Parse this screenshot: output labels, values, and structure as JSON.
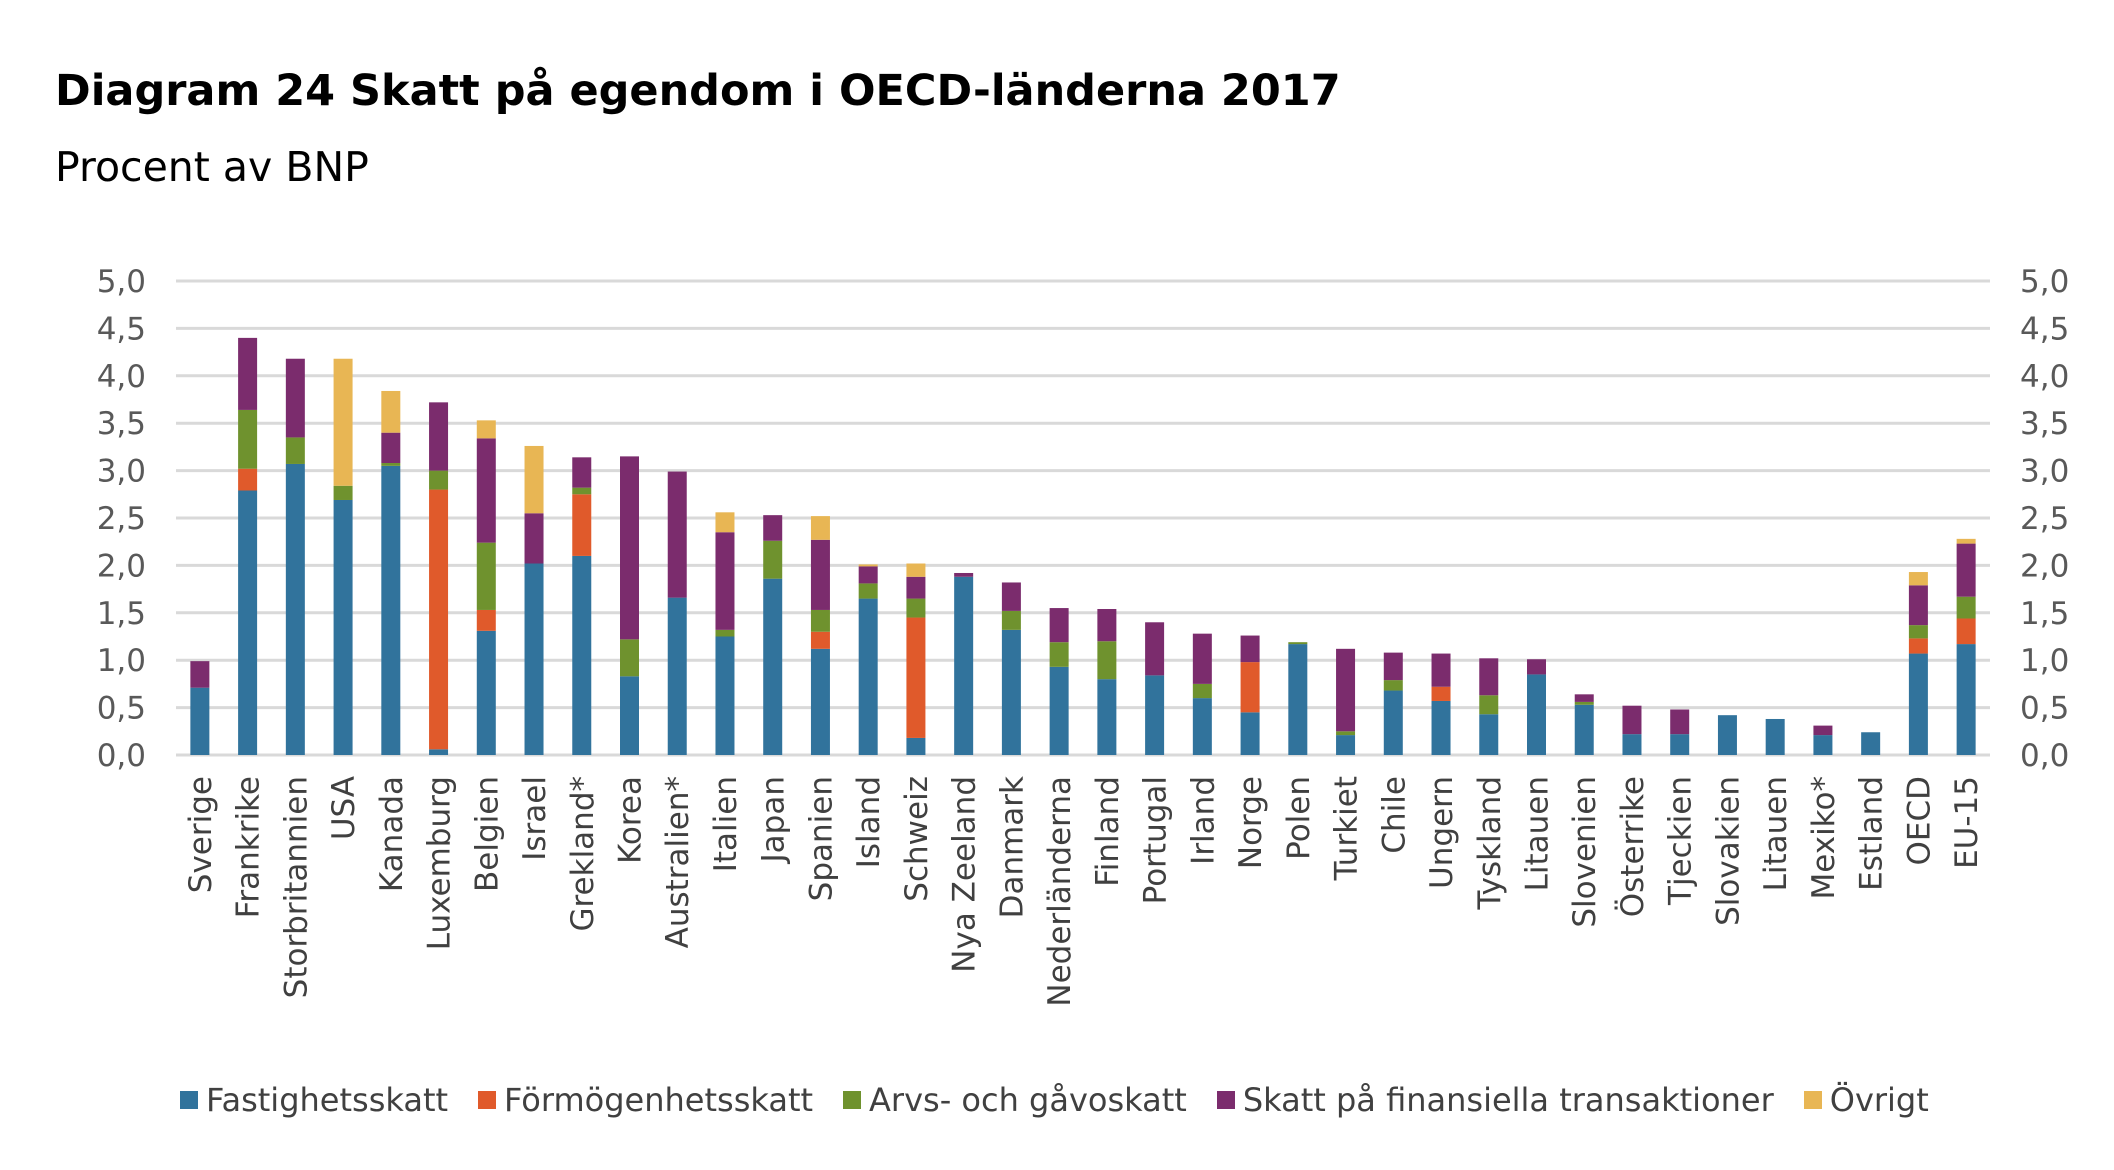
{
  "title": "Diagram 24 Skatt på egendom i OECD-länderna 2017",
  "subtitle": "Procent av BNP",
  "chart_data": {
    "type": "bar",
    "stacked": true,
    "ylim": [
      0,
      5
    ],
    "yticks": [
      "0,0",
      "0,5",
      "1,0",
      "1,5",
      "2,0",
      "2,5",
      "3,0",
      "3,5",
      "4,0",
      "4,5",
      "5,0"
    ],
    "ytick_values": [
      0,
      0.5,
      1,
      1.5,
      2,
      2.5,
      3,
      3.5,
      4,
      4.5,
      5
    ],
    "categories": [
      "Sverige",
      "Frankrike",
      "Storbritannien",
      "USA",
      "Kanada",
      "Luxemburg",
      "Belgien",
      "Israel",
      "Grekland*",
      "Korea",
      "Australien*",
      "Italien",
      "Japan",
      "Spanien",
      "Island",
      "Schweiz",
      "Nya Zeeland",
      "Danmark",
      "Nederländerna",
      "Finland",
      "Portugal",
      "Irland",
      "Norge",
      "Polen",
      "Turkiet",
      "Chile",
      "Ungern",
      "Tyskland",
      "Litauen",
      "Slovenien",
      "Österrike",
      "Tjeckien",
      "Slovakien",
      "Litauen",
      "Mexiko*",
      "Estland",
      "OECD",
      "EU-15"
    ],
    "series": [
      {
        "name": "Fastighetsskatt",
        "color": "#31739c",
        "values": [
          0.71,
          2.79,
          3.07,
          2.69,
          3.05,
          0.06,
          1.31,
          2.02,
          2.1,
          0.83,
          1.66,
          1.25,
          1.86,
          1.12,
          1.65,
          0.18,
          1.88,
          1.32,
          0.93,
          0.8,
          0.84,
          0.6,
          0.45,
          1.17,
          0.21,
          0.68,
          0.57,
          0.43,
          0.85,
          0.53,
          0.22,
          0.22,
          0.42,
          0.38,
          0.21,
          0.24,
          1.07,
          1.17
        ]
      },
      {
        "name": "Förmögenhetsskatt",
        "color": "#e05a2b",
        "values": [
          0,
          0.23,
          0,
          0,
          0,
          2.74,
          0.22,
          0,
          0.65,
          0,
          0,
          0,
          0,
          0.18,
          0,
          1.27,
          0,
          0,
          0,
          0,
          0,
          0,
          0.53,
          0,
          0,
          0,
          0.15,
          0,
          0,
          0,
          0,
          0,
          0,
          0,
          0,
          0,
          0.16,
          0.27
        ]
      },
      {
        "name": "Arvs- och gåvoskatt",
        "color": "#6f922e",
        "values": [
          0,
          0.62,
          0.28,
          0.15,
          0.03,
          0.2,
          0.71,
          0,
          0.07,
          0.39,
          0,
          0.07,
          0.4,
          0.23,
          0.16,
          0.2,
          0,
          0.2,
          0.26,
          0.4,
          0,
          0.15,
          0,
          0.02,
          0.04,
          0.11,
          0,
          0.2,
          0,
          0.03,
          0,
          0,
          0,
          0,
          0,
          0,
          0.14,
          0.23
        ]
      },
      {
        "name": "Skatt på finansiella transaktioner",
        "color": "#7b2c6d",
        "values": [
          0.28,
          0.76,
          0.83,
          0,
          0.32,
          0.72,
          1.1,
          0.53,
          0.32,
          1.93,
          1.33,
          1.03,
          0.27,
          0.74,
          0.18,
          0.23,
          0.04,
          0.3,
          0.36,
          0.34,
          0.56,
          0.53,
          0.28,
          0,
          0.87,
          0.29,
          0.35,
          0.39,
          0.16,
          0.08,
          0.3,
          0.26,
          0,
          0,
          0.1,
          0,
          0.42,
          0.56
        ]
      },
      {
        "name": "Övrigt",
        "color": "#e8b654",
        "values": [
          0,
          0,
          0,
          1.34,
          0.44,
          0,
          0.19,
          0.71,
          0,
          0,
          0,
          0.21,
          0,
          0.25,
          0.02,
          0.14,
          0,
          0,
          0,
          0,
          0,
          0,
          0,
          0,
          0,
          0,
          0,
          0,
          0,
          0,
          0,
          0,
          0,
          0,
          0,
          0,
          0.14,
          0.05
        ]
      }
    ]
  }
}
